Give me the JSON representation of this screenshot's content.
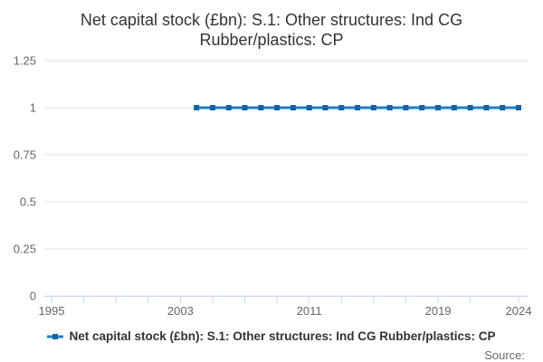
{
  "title": "Net capital stock (£bn): S.1: Other structures: Ind CG Rubber/plastics: CP",
  "legend": {
    "label": "Net capital stock (£bn): S.1: Other structures: Ind CG Rubber/plastics: CP"
  },
  "source_label": "Source:",
  "colors": {
    "line": "#1b80c5",
    "marker": "#1463a5",
    "grid": "#e6e6e6",
    "axis": "#ccd6eb",
    "tick_label": "#666666",
    "title_text": "#333333",
    "legend_text": "#333333",
    "source_text": "#666666"
  },
  "chart_data": {
    "type": "line",
    "title": "Net capital stock (£bn): S.1: Other structures: Ind CG Rubber/plastics: CP",
    "x": [
      2004,
      2005,
      2006,
      2007,
      2008,
      2009,
      2010,
      2011,
      2012,
      2013,
      2014,
      2015,
      2016,
      2017,
      2018,
      2019,
      2020,
      2021,
      2022,
      2023,
      2024
    ],
    "series": [
      {
        "name": "Net capital stock (£bn): S.1: Other structures: Ind CG Rubber/plastics: CP",
        "values": [
          1,
          1,
          1,
          1,
          1,
          1,
          1,
          1,
          1,
          1,
          1,
          1,
          1,
          1,
          1,
          1,
          1,
          1,
          1,
          1,
          1
        ]
      }
    ],
    "xlabel": "",
    "ylabel": "",
    "xlim": [
      1995,
      2024
    ],
    "ylim": [
      0,
      1.25
    ],
    "yticks": [
      0,
      0.25,
      0.5,
      0.75,
      1,
      1.25
    ],
    "xticks": [
      1995,
      1997,
      1999,
      2001,
      2003,
      2005,
      2007,
      2009,
      2011,
      2013,
      2015,
      2017,
      2019,
      2021,
      2024
    ],
    "xtick_labels": [
      1995,
      2003,
      2011,
      2019,
      2024
    ],
    "grid": true,
    "legend_position": "bottom"
  }
}
